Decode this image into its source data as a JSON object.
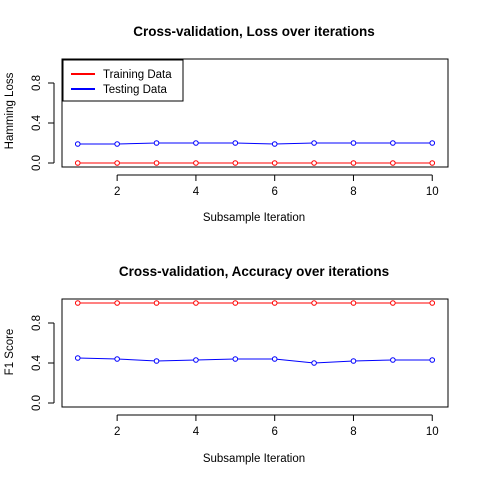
{
  "chart_data": [
    {
      "type": "line",
      "title": "Cross-validation, Loss over iterations",
      "xlabel": "Subsample Iteration",
      "ylabel": "Hamming Loss",
      "xlim": [
        0.6,
        10.4
      ],
      "ylim": [
        -0.04,
        1.04
      ],
      "x_ticks": [
        2,
        4,
        6,
        8,
        10
      ],
      "y_ticks": [
        0.0,
        0.4,
        0.8
      ],
      "y_tick_labels": [
        "0.0",
        "0.4",
        "0.8"
      ],
      "x": [
        1,
        2,
        3,
        4,
        5,
        6,
        7,
        8,
        9,
        10
      ],
      "legend": {
        "position": "top-left"
      },
      "grid": false,
      "series": [
        {
          "name": "Training Data",
          "color": "#ff0000",
          "values": [
            0.0,
            0.0,
            0.0,
            0.0,
            0.0,
            0.0,
            0.0,
            0.0,
            0.0,
            0.0
          ]
        },
        {
          "name": "Testing Data",
          "color": "#0000ff",
          "values": [
            0.19,
            0.19,
            0.2,
            0.2,
            0.2,
            0.19,
            0.2,
            0.2,
            0.2,
            0.2
          ]
        }
      ]
    },
    {
      "type": "line",
      "title": "Cross-validation, Accuracy over iterations",
      "xlabel": "Subsample Iteration",
      "ylabel": "F1 Score",
      "xlim": [
        0.6,
        10.4
      ],
      "ylim": [
        -0.04,
        1.04
      ],
      "x_ticks": [
        2,
        4,
        6,
        8,
        10
      ],
      "y_ticks": [
        0.0,
        0.4,
        0.8
      ],
      "y_tick_labels": [
        "0.0",
        "0.4",
        "0.8"
      ],
      "x": [
        1,
        2,
        3,
        4,
        5,
        6,
        7,
        8,
        9,
        10
      ],
      "grid": false,
      "series": [
        {
          "color": "#ff0000",
          "values": [
            1.0,
            1.0,
            1.0,
            1.0,
            1.0,
            1.0,
            1.0,
            1.0,
            1.0,
            1.0
          ]
        },
        {
          "color": "#0000ff",
          "values": [
            0.45,
            0.44,
            0.42,
            0.43,
            0.44,
            0.44,
            0.4,
            0.42,
            0.43,
            0.43
          ]
        }
      ]
    }
  ]
}
